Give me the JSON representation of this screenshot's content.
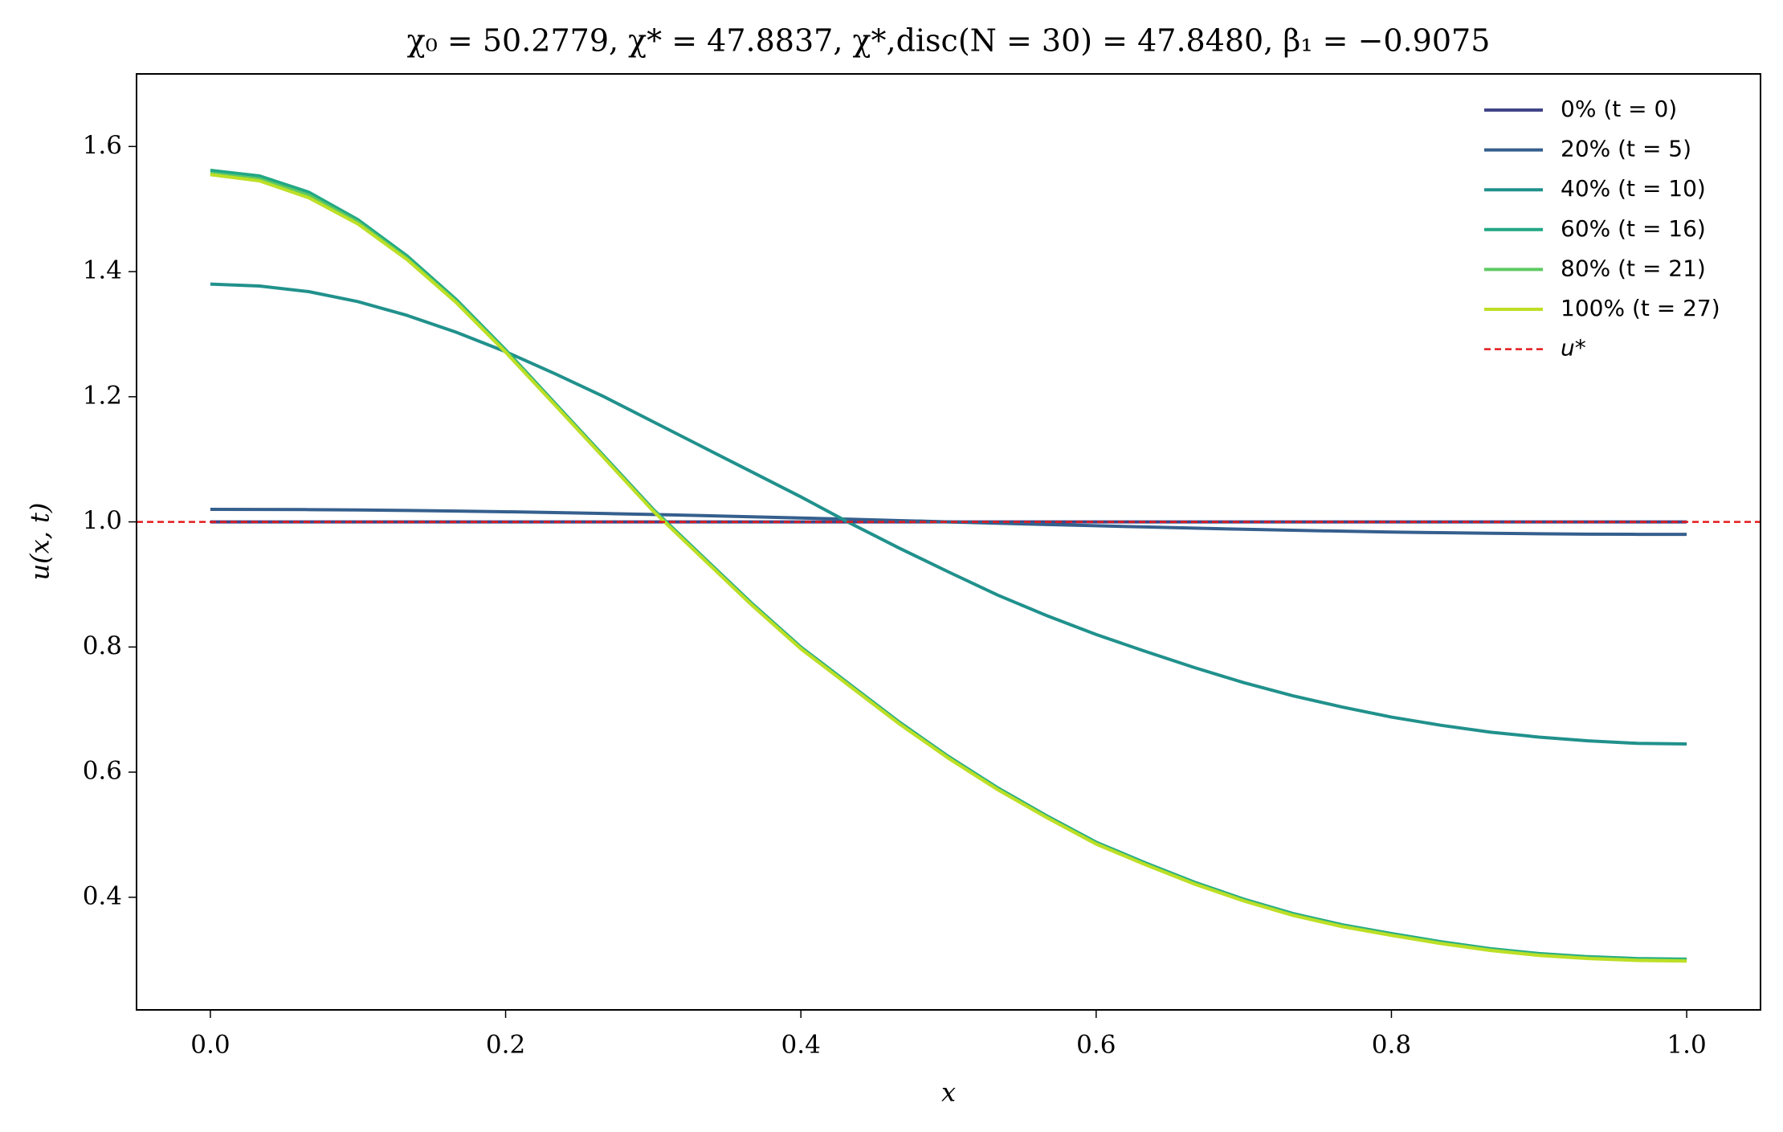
{
  "chart_data": {
    "type": "line",
    "title": "χ₀ = 50.2779,  χ* = 47.8837,  χ*,disc(N = 30) = 47.8480,  β₁ = −0.9075",
    "x_label": "x",
    "y_label": "u(x, t)",
    "x": [
      0,
      0.0333,
      0.0667,
      0.1,
      0.1333,
      0.1667,
      0.2,
      0.2333,
      0.2667,
      0.3,
      0.3333,
      0.3667,
      0.4,
      0.4333,
      0.4667,
      0.5,
      0.5333,
      0.5667,
      0.6,
      0.6333,
      0.6667,
      0.7,
      0.7333,
      0.7667,
      0.8,
      0.8333,
      0.8667,
      0.9,
      0.9333,
      0.9667,
      1
    ],
    "series": [
      {
        "name": "0% (t = 0)",
        "color": "#414487",
        "values": [
          1,
          1,
          1,
          1,
          1,
          1,
          1,
          1,
          1,
          1,
          1,
          1,
          1,
          1,
          1,
          1,
          1,
          1,
          1,
          1,
          1,
          1,
          1,
          1,
          1,
          1,
          1,
          1,
          1,
          1,
          1
        ]
      },
      {
        "name": "20% (t = 5)",
        "color": "#355f8d",
        "values": [
          1.02,
          1.0199,
          1.0196,
          1.019,
          1.0182,
          1.0173,
          1.0162,
          1.0149,
          1.0134,
          1.0118,
          1.01,
          1.0081,
          1.0062,
          1.0042,
          1.0021,
          1.0,
          0.9979,
          0.9958,
          0.9938,
          0.9919,
          0.99,
          0.9882,
          0.9866,
          0.9851,
          0.9838,
          0.9827,
          0.9818,
          0.981,
          0.9804,
          0.9801,
          0.98
        ]
      },
      {
        "name": "40% (t = 10)",
        "color": "#21918c",
        "values": [
          1.38,
          1.377,
          1.368,
          1.352,
          1.33,
          1.303,
          1.272,
          1.237,
          1.2,
          1.16,
          1.12,
          1.08,
          1.04,
          0.998,
          0.958,
          0.92,
          0.883,
          0.85,
          0.82,
          0.793,
          0.767,
          0.743,
          0.722,
          0.704,
          0.688,
          0.675,
          0.664,
          0.656,
          0.65,
          0.646,
          0.645
        ]
      },
      {
        "name": "60% (t = 16)",
        "color": "#22a884",
        "values": [
          1.562,
          1.553,
          1.527,
          1.483,
          1.425,
          1.355,
          1.275,
          1.19,
          1.105,
          1.02,
          0.945,
          0.87,
          0.8,
          0.74,
          0.68,
          0.625,
          0.575,
          0.53,
          0.488,
          0.455,
          0.424,
          0.397,
          0.374,
          0.356,
          0.342,
          0.329,
          0.318,
          0.31,
          0.305,
          0.302,
          0.301
        ]
      },
      {
        "name": "80% (t = 21)",
        "color": "#5ec962",
        "values": [
          1.557,
          1.548,
          1.522,
          1.479,
          1.421,
          1.352,
          1.273,
          1.188,
          1.103,
          1.018,
          0.943,
          0.868,
          0.798,
          0.738,
          0.678,
          0.623,
          0.573,
          0.528,
          0.486,
          0.453,
          0.422,
          0.395,
          0.372,
          0.354,
          0.34,
          0.327,
          0.316,
          0.308,
          0.303,
          0.3,
          0.299
        ]
      },
      {
        "name": "100% (t = 27)",
        "color": "#bddf26",
        "values": [
          1.555,
          1.545,
          1.518,
          1.476,
          1.419,
          1.35,
          1.271,
          1.187,
          1.102,
          1.017,
          0.942,
          0.867,
          0.797,
          0.737,
          0.677,
          0.622,
          0.572,
          0.527,
          0.485,
          0.452,
          0.421,
          0.394,
          0.371,
          0.353,
          0.339,
          0.326,
          0.315,
          0.307,
          0.302,
          0.299,
          0.298
        ]
      }
    ],
    "reference": {
      "name": "u*",
      "value": 1.0,
      "color": "#e41a1c"
    },
    "xlim": [
      -0.05,
      1.05
    ],
    "ylim": [
      0.22,
      1.716
    ],
    "xticks": [
      {
        "value": 0,
        "label": "0.0"
      },
      0.2,
      0.4,
      0.6,
      0.8,
      {
        "value": 1,
        "label": "1.0"
      }
    ],
    "yticks": [
      0.4,
      0.6,
      0.8,
      {
        "value": 1,
        "label": "1.0"
      },
      1.2,
      1.4,
      1.6
    ],
    "grid": false,
    "legend": "upper right"
  }
}
